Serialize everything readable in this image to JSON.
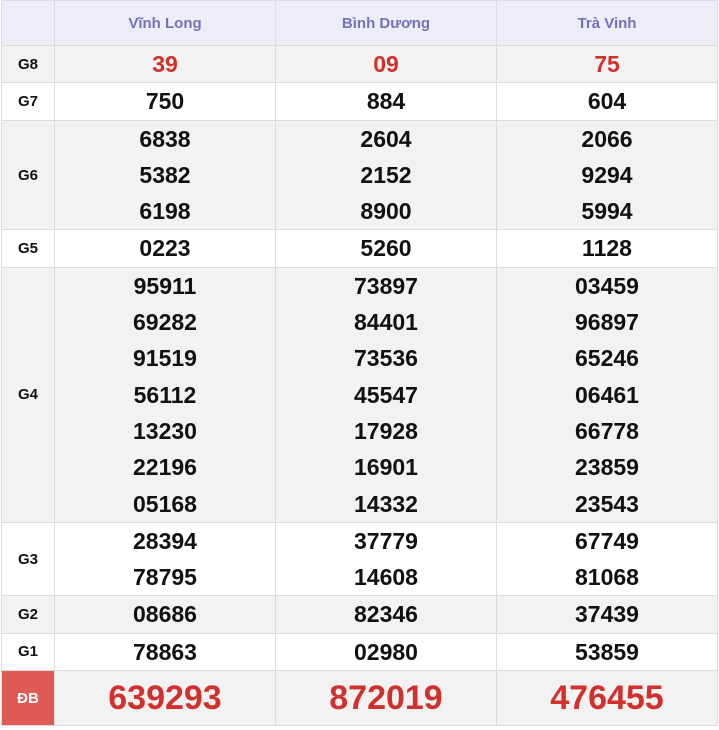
{
  "header": {
    "columns": [
      "Vĩnh Long",
      "Bình Dương",
      "Trà Vinh"
    ]
  },
  "colors": {
    "header_text": "#7770b8",
    "prize_red": "#d0312d",
    "db_label_bg": "#e05a55"
  },
  "rows": [
    {
      "label": "G8",
      "style": "red",
      "values": [
        [
          "39"
        ],
        [
          "09"
        ],
        [
          "75"
        ]
      ]
    },
    {
      "label": "G7",
      "values": [
        [
          "750"
        ],
        [
          "884"
        ],
        [
          "604"
        ]
      ]
    },
    {
      "label": "G6",
      "values": [
        [
          "6838",
          "5382",
          "6198"
        ],
        [
          "2604",
          "2152",
          "8900"
        ],
        [
          "2066",
          "9294",
          "5994"
        ]
      ]
    },
    {
      "label": "G5",
      "values": [
        [
          "0223"
        ],
        [
          "5260"
        ],
        [
          "1128"
        ]
      ]
    },
    {
      "label": "G4",
      "values": [
        [
          "95911",
          "69282",
          "91519",
          "56112",
          "13230",
          "22196",
          "05168"
        ],
        [
          "73897",
          "84401",
          "73536",
          "45547",
          "17928",
          "16901",
          "14332"
        ],
        [
          "03459",
          "96897",
          "65246",
          "06461",
          "66778",
          "23859",
          "23543"
        ]
      ]
    },
    {
      "label": "G3",
      "values": [
        [
          "28394",
          "78795"
        ],
        [
          "37779",
          "14608"
        ],
        [
          "67749",
          "81068"
        ]
      ]
    },
    {
      "label": "G2",
      "values": [
        [
          "08686"
        ],
        [
          "82346"
        ],
        [
          "37439"
        ]
      ]
    },
    {
      "label": "G1",
      "values": [
        [
          "78863"
        ],
        [
          "02980"
        ],
        [
          "53859"
        ]
      ]
    },
    {
      "label": "ĐB",
      "style": "big",
      "values": [
        [
          "639293"
        ],
        [
          "872019"
        ],
        [
          "476455"
        ]
      ]
    }
  ]
}
